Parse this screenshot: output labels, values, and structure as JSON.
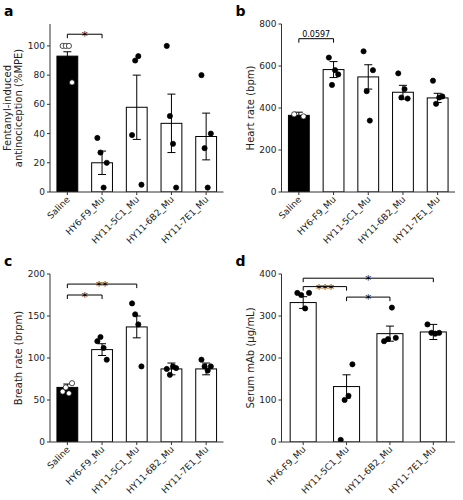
{
  "chart_data": [
    {
      "type": "bar",
      "title": "a",
      "ylabel": "Fentanyl-induced\nantinociception (%MPE)",
      "categories": [
        "Saline",
        "HY6-F9_Mu",
        "HY11-5C1_Mu",
        "HY11-6B2_Mu",
        "HY11-7E1_Mu"
      ],
      "values": [
        93,
        20,
        58,
        47,
        38
      ],
      "errors": [
        3,
        8,
        22,
        20,
        16
      ],
      "colors": [
        "black",
        "white",
        "white",
        "white",
        "white"
      ],
      "dots": [
        {
          "color": "white",
          "values": [
            100,
            100,
            100,
            75
          ]
        },
        {
          "color": "black",
          "values": [
            37,
            27,
            3,
            20
          ]
        },
        {
          "color": "black",
          "values": [
            39,
            90,
            93,
            5
          ]
        },
        {
          "color": "black",
          "values": [
            100,
            52,
            33,
            3
          ]
        },
        {
          "color": "black",
          "values": [
            80,
            30,
            3,
            40
          ]
        }
      ],
      "annotations": [
        {
          "text": "*",
          "from": "Saline",
          "to": "HY6-F9_Mu",
          "y": 108
        }
      ],
      "ylim": [
        0,
        115
      ],
      "yticks": [
        0,
        20,
        40,
        60,
        80,
        100
      ],
      "grid": false
    },
    {
      "type": "bar",
      "title": "b",
      "ylabel": "Heart rate (bpm)",
      "categories": [
        "Saline",
        "HY6-F9_Mu",
        "HY11-5C1_Mu",
        "HY11-6B2_Mu",
        "HY11-7E1_Mu"
      ],
      "values": [
        365,
        583,
        548,
        475,
        448
      ],
      "errors": [
        15,
        38,
        58,
        33,
        22
      ],
      "colors": [
        "black",
        "white",
        "white",
        "white",
        "white"
      ],
      "dots": [
        {
          "color": "white",
          "values": [
            370,
            360
          ]
        },
        {
          "color": "black",
          "values": [
            640,
            510,
            580,
            560
          ]
        },
        {
          "color": "black",
          "values": [
            670,
            480,
            340,
            580
          ]
        },
        {
          "color": "black",
          "values": [
            565,
            450,
            490,
            445
          ]
        },
        {
          "color": "black",
          "values": [
            530,
            420,
            450,
            455
          ]
        }
      ],
      "annotations": [
        {
          "text": "0.0597",
          "from": "Saline",
          "to": "HY6-F9_Mu",
          "y": 730
        }
      ],
      "ylim": [
        0,
        800
      ],
      "yticks": [
        0,
        200,
        400,
        600,
        800
      ],
      "grid": false
    },
    {
      "type": "bar",
      "title": "c",
      "ylabel": "Breath rate (brpm)",
      "categories": [
        "Saline",
        "HY6-F9_Mu",
        "HY11-5C1_Mu",
        "HY11-6B2_Mu",
        "HY11-7E1_Mu"
      ],
      "values": [
        65,
        110,
        137,
        87,
        87
      ],
      "errors": [
        4,
        7,
        13,
        7,
        7
      ],
      "colors": [
        "black",
        "white",
        "white",
        "white",
        "white"
      ],
      "dots": [
        {
          "color": "white",
          "values": [
            60,
            65,
            58,
            70
          ]
        },
        {
          "color": "black",
          "values": [
            120,
            125,
            112,
            98
          ]
        },
        {
          "color": "black",
          "values": [
            165,
            152,
            140,
            90
          ]
        },
        {
          "color": "black",
          "values": [
            87,
            80,
            90,
            88
          ]
        },
        {
          "color": "black",
          "values": [
            98,
            90,
            85,
            90
          ]
        }
      ],
      "annotations": [
        {
          "text": "*",
          "from": "Saline",
          "to": "HY6-F9_Mu",
          "y": 175
        },
        {
          "text": "**",
          "from": "Saline",
          "to": "HY11-5C1_Mu",
          "y": 188
        }
      ],
      "ylim": [
        0,
        200
      ],
      "yticks": [
        0,
        50,
        100,
        150,
        200
      ],
      "grid": false
    },
    {
      "type": "bar",
      "title": "d",
      "ylabel": "Serum mAb (μg/mL)",
      "categories": [
        "HY6-F9_Mu",
        "HY11-5C1_Mu",
        "HY11-6B2_Mu",
        "HY11-7E1_Mu"
      ],
      "values": [
        332,
        132,
        258,
        262
      ],
      "errors": [
        14,
        28,
        18,
        18
      ],
      "colors": [
        "white",
        "white",
        "white",
        "white"
      ],
      "dots": [
        {
          "color": "black",
          "values": [
            355,
            350,
            318,
            355
          ]
        },
        {
          "color": "black",
          "values": [
            5,
            100,
            110,
            185
          ]
        },
        {
          "color": "black",
          "values": [
            240,
            245,
            320,
            248
          ]
        },
        {
          "color": "black",
          "values": [
            280,
            260,
            258,
            260
          ]
        }
      ],
      "annotations": [
        {
          "text": "***",
          "from": "HY6-F9_Mu",
          "to": "HY11-5C1_Mu",
          "y": 370
        },
        {
          "text": "*",
          "from": "HY11-5C1_Mu",
          "to": "HY11-6B2_Mu",
          "y": 345
        },
        {
          "text": "*",
          "from": "HY6-F9_Mu",
          "to": "HY11-7E1_Mu",
          "y": 390
        }
      ],
      "ylim": [
        0,
        400
      ],
      "yticks": [
        0,
        100,
        200,
        300,
        400
      ],
      "grid": false
    }
  ]
}
